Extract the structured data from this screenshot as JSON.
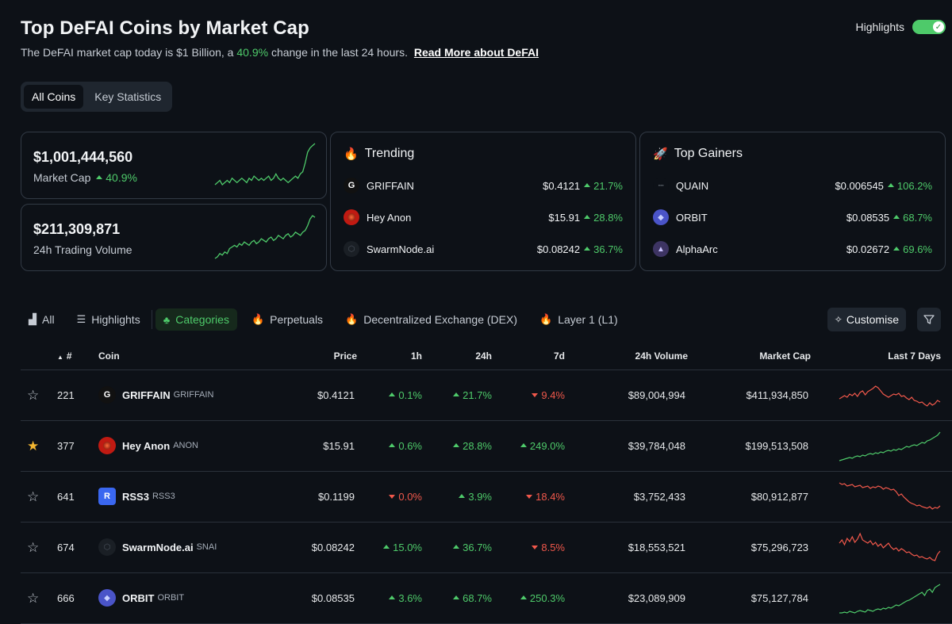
{
  "header": {
    "title": "Top DeFAI Coins by Market Cap",
    "subtitle_pre": "The DeFAI market cap today is $1 Billion, a",
    "subtitle_pct": "40.9%",
    "subtitle_post": "change in the last 24 hours.",
    "read_more": "Read More about DeFAI",
    "highlights_label": "Highlights",
    "highlights_on": true
  },
  "view_tabs": [
    {
      "label": "All Coins",
      "active": true
    },
    {
      "label": "Key Statistics",
      "active": false
    }
  ],
  "market_cap_card": {
    "value": "$1,001,444,560",
    "label": "Market Cap",
    "change": "40.9%",
    "change_dir": "up",
    "sparkline": [
      3,
      4,
      5,
      3,
      4,
      5,
      4,
      6,
      5,
      4,
      5,
      6,
      5,
      4,
      6,
      5,
      7,
      6,
      5,
      6,
      5,
      6,
      7,
      5,
      6,
      8,
      6,
      5,
      6,
      5,
      4,
      5,
      6,
      7,
      6,
      8,
      9,
      13,
      18,
      20,
      21,
      22
    ]
  },
  "volume_card": {
    "value": "$211,309,871",
    "label": "24h Trading Volume",
    "sparkline": [
      2,
      3,
      5,
      4,
      6,
      5,
      8,
      9,
      10,
      9,
      11,
      10,
      12,
      11,
      10,
      12,
      13,
      11,
      12,
      14,
      13,
      12,
      14,
      15,
      13,
      14,
      16,
      15,
      14,
      16,
      17,
      15,
      16,
      18,
      17,
      16,
      18,
      19,
      22,
      26,
      28,
      27
    ]
  },
  "trending": {
    "title": "Trending",
    "items": [
      {
        "name": "GRIFFAIN",
        "price": "$0.4121",
        "change": "21.7%",
        "icon": "griffain-logo-icon",
        "color": "#111111"
      },
      {
        "name": "Hey Anon",
        "price": "$15.91",
        "change": "28.8%",
        "icon": "hey-anon-logo-icon",
        "color": "#c01a12"
      },
      {
        "name": "SwarmNode.ai",
        "price": "$0.08242",
        "change": "36.7%",
        "icon": "swarmnode-logo-icon",
        "color": "#1a1f25"
      }
    ]
  },
  "top_gainers": {
    "title": "Top Gainers",
    "items": [
      {
        "name": "QUAIN",
        "price": "$0.006545",
        "change": "106.2%",
        "icon": "quain-logo-icon",
        "color": "#0d1117"
      },
      {
        "name": "ORBIT",
        "price": "$0.08535",
        "change": "68.7%",
        "icon": "orbit-logo-icon",
        "color": "#4a54c8"
      },
      {
        "name": "AlphaArc",
        "price": "$0.02672",
        "change": "69.6%",
        "icon": "alphaarc-logo-icon",
        "color": "#3d3463"
      }
    ]
  },
  "filters": [
    {
      "label": "All",
      "icon": "bar-chart-icon",
      "active": false
    },
    {
      "label": "Highlights",
      "icon": "list-icon",
      "active": false
    },
    {
      "label": "Categories",
      "icon": "categories-icon",
      "active": true
    },
    {
      "label": "Perpetuals",
      "icon": "fire-icon",
      "active": false
    },
    {
      "label": "Decentralized Exchange (DEX)",
      "icon": "fire-icon",
      "active": false
    },
    {
      "label": "Layer 1 (L1)",
      "icon": "fire-icon",
      "active": false
    }
  ],
  "customise_label": "Customise",
  "table": {
    "headers": {
      "rank": "#",
      "coin": "Coin",
      "price": "Price",
      "h1": "1h",
      "h24": "24h",
      "d7": "7d",
      "volume": "24h Volume",
      "mcap": "Market Cap",
      "last7": "Last 7 Days"
    },
    "rows": [
      {
        "starred": false,
        "rank": "221",
        "name": "GRIFFAIN",
        "symbol": "GRIFFAIN",
        "icon": "griffain-logo-icon",
        "color": "#111111",
        "price": "$0.4121",
        "h1": "0.1%",
        "h1_dir": "up",
        "h24": "21.7%",
        "h24_dir": "up",
        "d7": "9.4%",
        "d7_dir": "down",
        "volume": "$89,004,994",
        "mcap": "$411,934,850",
        "trend": "down",
        "spark": [
          26,
          24,
          22,
          24,
          20,
          22,
          19,
          23,
          18,
          16,
          21,
          17,
          15,
          13,
          10,
          12,
          16,
          20,
          22,
          24,
          22,
          20,
          21,
          19,
          23,
          22,
          25,
          27,
          24,
          28,
          29,
          31,
          30,
          33,
          35,
          31,
          34,
          32,
          28,
          30
        ]
      },
      {
        "starred": true,
        "rank": "377",
        "name": "Hey Anon",
        "symbol": "ANON",
        "icon": "hey-anon-logo-icon",
        "color": "#c01a12",
        "price": "$15.91",
        "h1": "0.6%",
        "h1_dir": "up",
        "h24": "28.8%",
        "h24_dir": "up",
        "d7": "249.0%",
        "d7_dir": "up",
        "volume": "$39,784,048",
        "mcap": "$199,513,508",
        "trend": "up",
        "spark": [
          40,
          39,
          38,
          37,
          36,
          37,
          35,
          34,
          35,
          33,
          34,
          32,
          31,
          32,
          30,
          31,
          29,
          30,
          28,
          27,
          28,
          26,
          27,
          25,
          26,
          24,
          22,
          23,
          21,
          20,
          21,
          19,
          17,
          18,
          15,
          14,
          12,
          10,
          8,
          4
        ]
      },
      {
        "starred": false,
        "rank": "641",
        "name": "RSS3",
        "symbol": "RSS3",
        "icon": "rss3-logo-icon",
        "color": "#3a67f0",
        "price": "$0.1199",
        "h1": "0.0%",
        "h1_dir": "down",
        "h24": "3.9%",
        "h24_dir": "up",
        "d7": "18.4%",
        "d7_dir": "down",
        "volume": "$3,752,433",
        "mcap": "$80,912,877",
        "trend": "down",
        "spark": [
          4,
          6,
          5,
          8,
          7,
          6,
          9,
          8,
          7,
          10,
          9,
          8,
          11,
          9,
          10,
          8,
          9,
          12,
          10,
          11,
          13,
          12,
          15,
          20,
          18,
          22,
          25,
          28,
          30,
          31,
          33,
          32,
          34,
          35,
          36,
          34,
          37,
          35,
          36,
          33
        ]
      },
      {
        "starred": false,
        "rank": "674",
        "name": "SwarmNode.ai",
        "symbol": "SNAI",
        "icon": "swarmnode-logo-icon",
        "color": "#1a1f25",
        "price": "$0.08242",
        "h1": "15.0%",
        "h1_dir": "up",
        "h24": "36.7%",
        "h24_dir": "up",
        "d7": "8.5%",
        "d7_dir": "down",
        "volume": "$18,553,521",
        "mcap": "$75,296,723",
        "trend": "down",
        "spark": [
          16,
          12,
          18,
          10,
          14,
          8,
          15,
          11,
          4,
          12,
          14,
          16,
          13,
          18,
          15,
          20,
          17,
          22,
          19,
          16,
          21,
          24,
          22,
          26,
          23,
          25,
          28,
          27,
          30,
          32,
          31,
          34,
          33,
          35,
          36,
          34,
          37,
          38,
          30,
          26
        ]
      },
      {
        "starred": false,
        "rank": "666",
        "name": "ORBIT",
        "symbol": "ORBIT",
        "icon": "orbit-logo-icon",
        "color": "#4a54c8",
        "price": "$0.08535",
        "h1": "3.6%",
        "h1_dir": "up",
        "h24": "68.7%",
        "h24_dir": "up",
        "d7": "250.3%",
        "d7_dir": "up",
        "volume": "$23,089,909",
        "mcap": "$75,127,784",
        "trend": "up",
        "spark": [
          40,
          40,
          39,
          40,
          38,
          39,
          40,
          38,
          37,
          38,
          39,
          36,
          37,
          38,
          36,
          35,
          36,
          34,
          35,
          33,
          34,
          32,
          30,
          31,
          29,
          27,
          25,
          24,
          22,
          20,
          18,
          16,
          14,
          18,
          12,
          10,
          14,
          8,
          6,
          4
        ]
      }
    ]
  },
  "colors": {
    "up": "#4eca6a",
    "down": "#f0584b",
    "accent": "#4eca6a",
    "star": "#f4b731"
  }
}
